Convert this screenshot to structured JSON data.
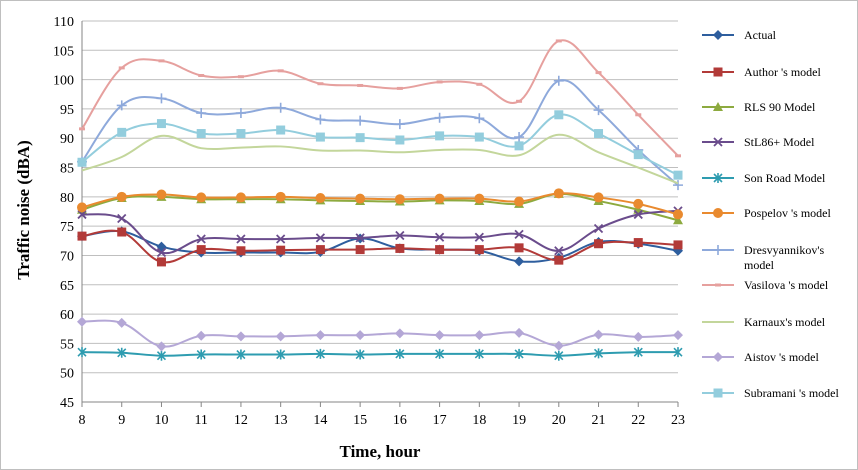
{
  "chart_data": {
    "type": "line",
    "title": "",
    "xlabel": "Time, hour",
    "ylabel": "Traffic noise (dBA)",
    "x": [
      8,
      9,
      10,
      11,
      12,
      13,
      14,
      15,
      16,
      17,
      18,
      19,
      20,
      21,
      22,
      23
    ],
    "ylim": [
      45,
      110
    ],
    "ytick_step": 5,
    "grid": "horizontal",
    "legend_position": "right",
    "series": [
      {
        "name": "Actual",
        "color": "#2E5E9E",
        "marker": "diamond",
        "values": [
          73.3,
          74.1,
          71.5,
          70.5,
          70.5,
          70.5,
          70.6,
          72.9,
          71.2,
          71.0,
          70.8,
          69.0,
          69.6,
          72.3,
          72.0,
          70.8
        ]
      },
      {
        "name": "Author 's model",
        "legend_lines": [
          "Author 's model"
        ],
        "color": "#B23A38",
        "marker": "square",
        "values": [
          73.3,
          74.0,
          68.9,
          71.0,
          70.8,
          70.9,
          71.0,
          71.0,
          71.2,
          71.0,
          71.0,
          71.3,
          69.2,
          72.0,
          72.2,
          71.8
        ]
      },
      {
        "name": "RLS 90 Model",
        "legend_lines": [
          "RLS 90 Model"
        ],
        "color": "#8DAA3F",
        "marker": "triangle",
        "values": [
          77.8,
          79.8,
          80.0,
          79.6,
          79.6,
          79.6,
          79.4,
          79.3,
          79.2,
          79.4,
          79.3,
          78.8,
          80.5,
          79.3,
          77.8,
          76.0
        ]
      },
      {
        "name": "StL86+ Model",
        "legend_lines": [
          "StL86+ Model"
        ],
        "color": "#6A4C8C",
        "marker": "x",
        "values": [
          77.0,
          76.3,
          70.5,
          72.8,
          72.8,
          72.8,
          73.0,
          73.0,
          73.4,
          73.1,
          73.1,
          73.6,
          70.8,
          74.6,
          77.0,
          77.6
        ]
      },
      {
        "name": "Son Road Model",
        "legend_lines": [
          "Son Road Model"
        ],
        "color": "#2E9CB0",
        "marker": "asterisk",
        "values": [
          53.5,
          53.4,
          52.9,
          53.1,
          53.1,
          53.1,
          53.2,
          53.1,
          53.2,
          53.2,
          53.2,
          53.2,
          52.9,
          53.3,
          53.5,
          53.5
        ]
      },
      {
        "name": "Pospelov 's model",
        "legend_lines": [
          "Pospelov 's model"
        ],
        "color": "#E98A2F",
        "marker": "circle",
        "values": [
          78.2,
          80.0,
          80.4,
          79.9,
          79.9,
          80.0,
          79.8,
          79.7,
          79.6,
          79.7,
          79.7,
          79.2,
          80.6,
          79.9,
          78.8,
          77.0
        ]
      },
      {
        "name": "Dresvyannikov's model",
        "legend_lines": [
          "Dresvyannikov's",
          "model"
        ],
        "color": "#8EA9DB",
        "marker": "plus",
        "values": [
          86.0,
          95.6,
          96.8,
          94.3,
          94.3,
          95.2,
          93.2,
          93.0,
          92.4,
          93.5,
          93.4,
          90.2,
          99.8,
          94.8,
          88.0,
          82.0
        ]
      },
      {
        "name": "Vasilova 's model",
        "legend_lines": [
          "Vasilova 's model"
        ],
        "color": "#E6A09E",
        "marker": "dash",
        "values": [
          91.6,
          102.0,
          103.2,
          100.7,
          100.5,
          101.5,
          99.3,
          99.0,
          98.5,
          99.6,
          99.2,
          96.3,
          106.6,
          101.2,
          94.0,
          87.0
        ]
      },
      {
        "name": "Karnaux's model",
        "legend_lines": [
          "Karnaux's model"
        ],
        "color": "#C3D69B",
        "marker": "none",
        "values": [
          84.5,
          86.8,
          90.4,
          88.3,
          88.4,
          88.6,
          87.9,
          87.9,
          87.6,
          88.0,
          88.0,
          87.1,
          90.6,
          87.6,
          85.0,
          82.3
        ]
      },
      {
        "name": "Aistov 's model",
        "legend_lines": [
          "Aistov 's model"
        ],
        "color": "#B4A7D6",
        "marker": "diamond",
        "values": [
          58.7,
          58.5,
          54.5,
          56.3,
          56.2,
          56.2,
          56.4,
          56.4,
          56.7,
          56.4,
          56.4,
          56.8,
          54.6,
          56.5,
          56.1,
          56.4
        ]
      },
      {
        "name": "Subramani 's model",
        "legend_lines": [
          "Subramani 's model"
        ],
        "color": "#93CDDD",
        "marker": "square",
        "values": [
          85.9,
          91.0,
          92.5,
          90.8,
          90.8,
          91.4,
          90.2,
          90.1,
          89.7,
          90.4,
          90.2,
          88.7,
          94.0,
          90.8,
          87.2,
          83.7
        ]
      }
    ]
  }
}
